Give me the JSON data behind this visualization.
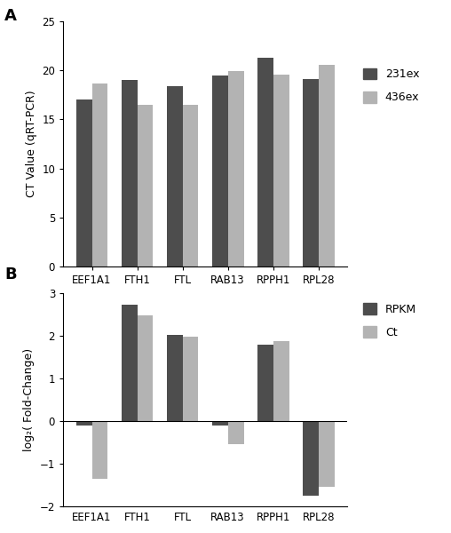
{
  "panel_A": {
    "categories": [
      "EEF1A1",
      "FTH1",
      "FTL",
      "RAB13",
      "RPPH1",
      "RPL28"
    ],
    "series_231ex": [
      17.0,
      19.0,
      18.4,
      19.5,
      21.3,
      19.1
    ],
    "series_436ex": [
      18.7,
      16.5,
      16.5,
      19.9,
      19.6,
      20.6
    ],
    "color_231ex": "#4d4d4d",
    "color_436ex": "#b3b3b3",
    "ylabel": "CT Value (qRT-PCR)",
    "ylim": [
      0,
      25
    ],
    "yticks": [
      0,
      5,
      10,
      15,
      20,
      25
    ],
    "legend_labels": [
      "231ex",
      "436ex"
    ],
    "panel_label": "A"
  },
  "panel_B": {
    "categories": [
      "EEF1A1",
      "FTH1",
      "FTL",
      "RAB13",
      "RPPH1",
      "RPL28"
    ],
    "series_RPKM": [
      -0.1,
      2.72,
      2.02,
      -0.1,
      1.79,
      -1.75
    ],
    "series_Ct": [
      -1.35,
      2.48,
      1.98,
      -0.55,
      1.87,
      -1.55
    ],
    "color_RPKM": "#4d4d4d",
    "color_Ct": "#b3b3b3",
    "ylabel": "log₂( Fold-Change)",
    "ylim": [
      -2,
      3
    ],
    "yticks": [
      -2,
      -1,
      0,
      1,
      2,
      3
    ],
    "legend_labels": [
      "RPKM",
      "Ct"
    ],
    "panel_label": "B"
  },
  "bar_width": 0.35,
  "background_color": "#ffffff"
}
